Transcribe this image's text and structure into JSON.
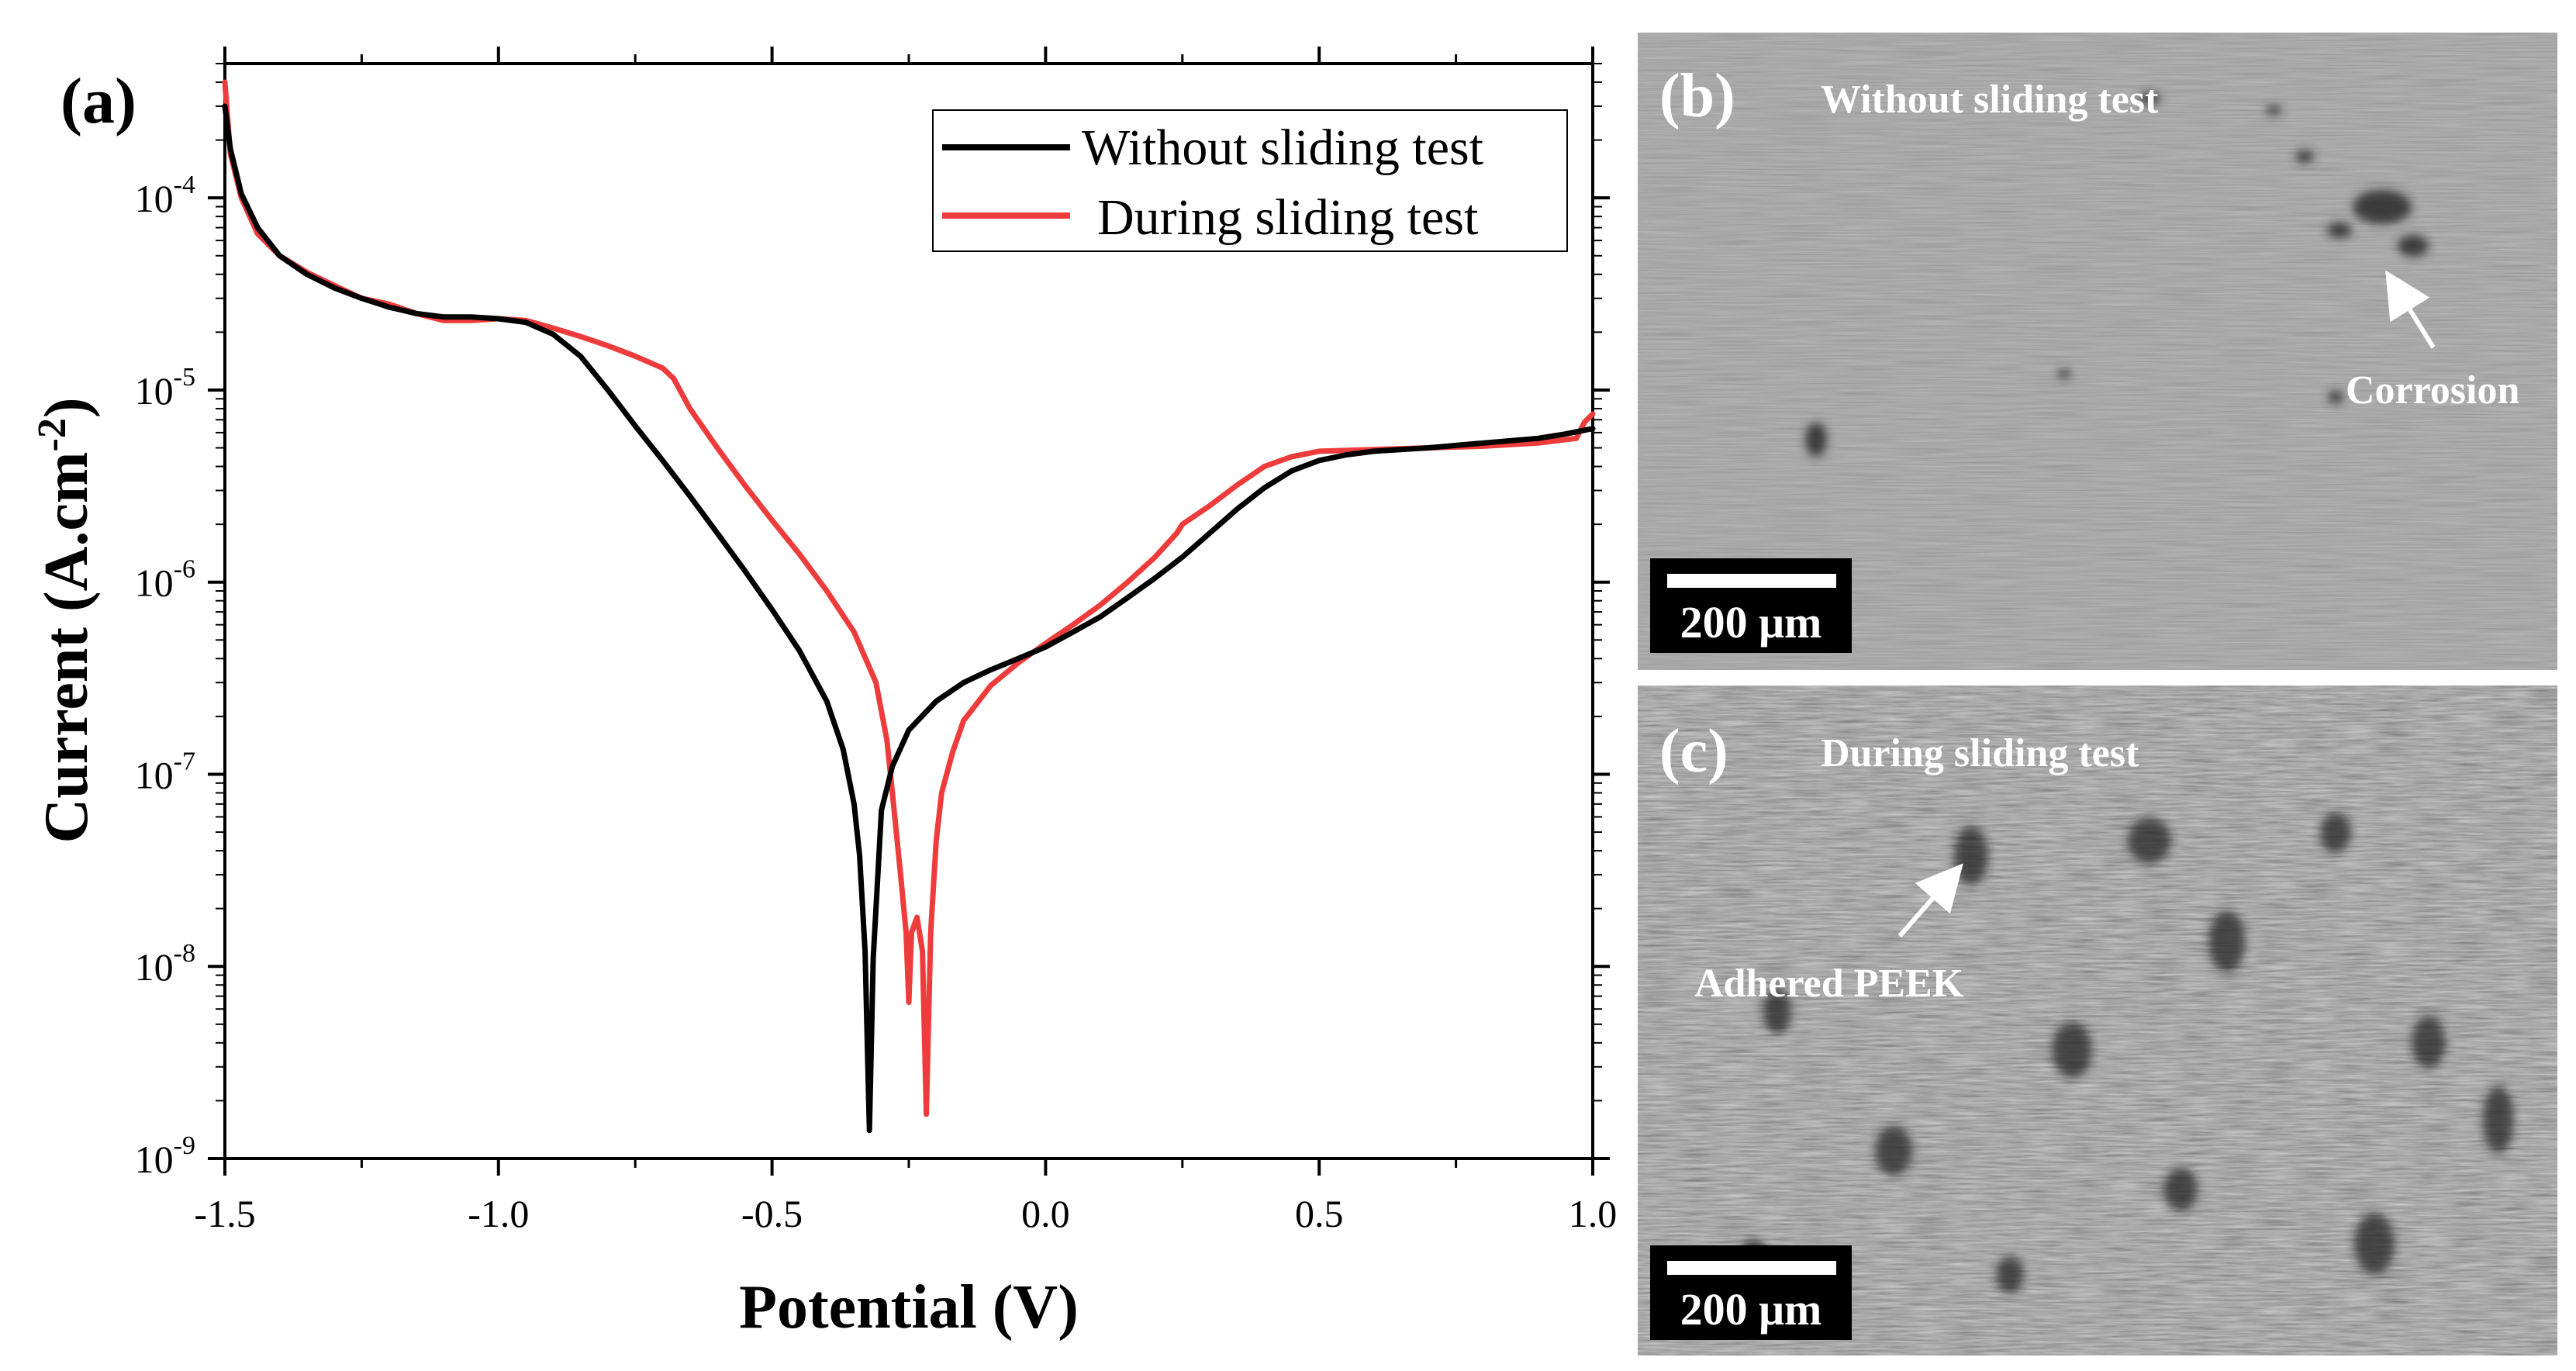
{
  "panel_a": {
    "label": "(a)",
    "chart_data": {
      "type": "line",
      "title": "",
      "xlabel": "Potential (V)",
      "ylabel_main": "Current (A.cm",
      "ylabel_sup": "-2",
      "ylabel_close": ")",
      "y_scale": "log",
      "xlim": [
        -1.5,
        1.0
      ],
      "ylim": [
        1e-09,
        0.0005
      ],
      "x_ticks": [
        -1.5,
        -1.0,
        -0.5,
        0.0,
        0.5,
        1.0
      ],
      "x_tick_labels": [
        "-1.5",
        "-1.0",
        "-0.5",
        "0.0",
        "0.5",
        "1.0"
      ],
      "y_ticks": [
        {
          "value": 1e-09,
          "base": "10",
          "exp": "-9"
        },
        {
          "value": 1e-08,
          "base": "10",
          "exp": "-8"
        },
        {
          "value": 1e-07,
          "base": "10",
          "exp": "-7"
        },
        {
          "value": 1e-06,
          "base": "10",
          "exp": "-6"
        },
        {
          "value": 1e-05,
          "base": "10",
          "exp": "-5"
        },
        {
          "value": 0.0001,
          "base": "10",
          "exp": "-4"
        }
      ],
      "legend_position": "top-right",
      "series": [
        {
          "name": "Without sliding test",
          "color": "#000000",
          "points": [
            [
              -1.5,
              0.0003
            ],
            [
              -1.49,
              0.00018
            ],
            [
              -1.47,
              0.000105
            ],
            [
              -1.44,
              7e-05
            ],
            [
              -1.4,
              5e-05
            ],
            [
              -1.35,
              4e-05
            ],
            [
              -1.3,
              3.4e-05
            ],
            [
              -1.25,
              3e-05
            ],
            [
              -1.2,
              2.7e-05
            ],
            [
              -1.15,
              2.5e-05
            ],
            [
              -1.1,
              2.4e-05
            ],
            [
              -1.05,
              2.4e-05
            ],
            [
              -1.0,
              2.35e-05
            ],
            [
              -0.95,
              2.25e-05
            ],
            [
              -0.9,
              1.95e-05
            ],
            [
              -0.85,
              1.5e-05
            ],
            [
              -0.8,
              1e-05
            ],
            [
              -0.75,
              6.5e-06
            ],
            [
              -0.7,
              4.3e-06
            ],
            [
              -0.65,
              2.8e-06
            ],
            [
              -0.6,
              1.8e-06
            ],
            [
              -0.55,
              1.15e-06
            ],
            [
              -0.5,
              7.2e-07
            ],
            [
              -0.45,
              4.4e-07
            ],
            [
              -0.4,
              2.4e-07
            ],
            [
              -0.37,
              1.35e-07
            ],
            [
              -0.35,
              7e-08
            ],
            [
              -0.34,
              3.8e-08
            ],
            [
              -0.33,
              1.2e-08
            ],
            [
              -0.322,
              1.4e-09
            ],
            [
              -0.315,
              1.1e-08
            ],
            [
              -0.3,
              6.5e-08
            ],
            [
              -0.28,
              1.1e-07
            ],
            [
              -0.25,
              1.7e-07
            ],
            [
              -0.2,
              2.4e-07
            ],
            [
              -0.15,
              3e-07
            ],
            [
              -0.1,
              3.5e-07
            ],
            [
              -0.05,
              4e-07
            ],
            [
              0.0,
              4.6e-07
            ],
            [
              0.05,
              5.5e-07
            ],
            [
              0.1,
              6.6e-07
            ],
            [
              0.15,
              8.3e-07
            ],
            [
              0.2,
              1.05e-06
            ],
            [
              0.25,
              1.35e-06
            ],
            [
              0.3,
              1.8e-06
            ],
            [
              0.35,
              2.4e-06
            ],
            [
              0.4,
              3.1e-06
            ],
            [
              0.45,
              3.8e-06
            ],
            [
              0.5,
              4.3e-06
            ],
            [
              0.55,
              4.6e-06
            ],
            [
              0.6,
              4.8e-06
            ],
            [
              0.7,
              5e-06
            ],
            [
              0.8,
              5.3e-06
            ],
            [
              0.9,
              5.6e-06
            ],
            [
              0.95,
              5.9e-06
            ],
            [
              1.0,
              6.3e-06
            ]
          ]
        },
        {
          "name": "During sliding test",
          "color": "#ee3b3b",
          "points": [
            [
              -1.5,
              0.0004
            ],
            [
              -1.49,
              0.00017
            ],
            [
              -1.47,
              0.0001
            ],
            [
              -1.44,
              6.5e-05
            ],
            [
              -1.4,
              5e-05
            ],
            [
              -1.35,
              4.1e-05
            ],
            [
              -1.3,
              3.5e-05
            ],
            [
              -1.25,
              3e-05
            ],
            [
              -1.2,
              2.8e-05
            ],
            [
              -1.15,
              2.5e-05
            ],
            [
              -1.1,
              2.3e-05
            ],
            [
              -1.05,
              2.3e-05
            ],
            [
              -1.0,
              2.35e-05
            ],
            [
              -0.95,
              2.3e-05
            ],
            [
              -0.9,
              2.1e-05
            ],
            [
              -0.85,
              1.9e-05
            ],
            [
              -0.8,
              1.7e-05
            ],
            [
              -0.75,
              1.5e-05
            ],
            [
              -0.7,
              1.3e-05
            ],
            [
              -0.68,
              1.15e-05
            ],
            [
              -0.65,
              8e-06
            ],
            [
              -0.6,
              5e-06
            ],
            [
              -0.55,
              3.2e-06
            ],
            [
              -0.5,
              2.1e-06
            ],
            [
              -0.45,
              1.4e-06
            ],
            [
              -0.4,
              9e-07
            ],
            [
              -0.35,
              5.5e-07
            ],
            [
              -0.31,
              3e-07
            ],
            [
              -0.29,
              1.5e-07
            ],
            [
              -0.28,
              8e-08
            ],
            [
              -0.265,
              3e-08
            ],
            [
              -0.255,
              1.5e-08
            ],
            [
              -0.25,
              6.5e-09
            ],
            [
              -0.245,
              1.5e-08
            ],
            [
              -0.235,
              1.8e-08
            ],
            [
              -0.225,
              1.2e-08
            ],
            [
              -0.218,
              1.7e-09
            ],
            [
              -0.21,
              1.5e-08
            ],
            [
              -0.2,
              4.5e-08
            ],
            [
              -0.19,
              8e-08
            ],
            [
              -0.17,
              1.3e-07
            ],
            [
              -0.15,
              1.9e-07
            ],
            [
              -0.1,
              2.9e-07
            ],
            [
              -0.05,
              3.8e-07
            ],
            [
              0.0,
              4.8e-07
            ],
            [
              0.05,
              6e-07
            ],
            [
              0.1,
              7.6e-07
            ],
            [
              0.15,
              1e-06
            ],
            [
              0.2,
              1.35e-06
            ],
            [
              0.24,
              1.8e-06
            ],
            [
              0.25,
              2e-06
            ],
            [
              0.3,
              2.5e-06
            ],
            [
              0.35,
              3.2e-06
            ],
            [
              0.4,
              4e-06
            ],
            [
              0.45,
              4.5e-06
            ],
            [
              0.5,
              4.8e-06
            ],
            [
              0.6,
              4.9e-06
            ],
            [
              0.7,
              5e-06
            ],
            [
              0.8,
              5.1e-06
            ],
            [
              0.9,
              5.3e-06
            ],
            [
              0.97,
              5.6e-06
            ],
            [
              0.985,
              6.8e-06
            ],
            [
              1.0,
              7.5e-06
            ]
          ]
        }
      ]
    }
  },
  "panel_b": {
    "label": "(b)",
    "caption": "Without sliding test",
    "annotation": "Corrosion",
    "scale_bar": "200 μm"
  },
  "panel_c": {
    "label": "(c)",
    "caption": "During sliding test",
    "annotation": "Adhered PEEK",
    "scale_bar": "200 μm"
  }
}
